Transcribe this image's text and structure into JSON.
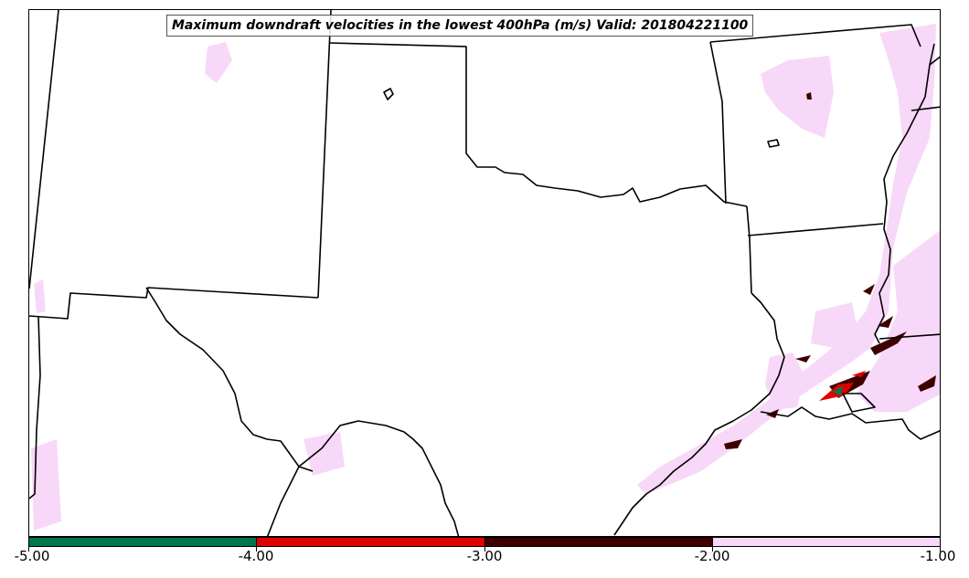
{
  "title": "Maximum downdraft velocities in the lowest 400hPa (m/s) Valid: 201804221100",
  "colorbar": {
    "ticks": [
      "-5.00",
      "-4.00",
      "-3.00",
      "-2.00",
      "-1.00"
    ],
    "bins": [
      {
        "from": -5.0,
        "to": -4.0,
        "color": "#00774a"
      },
      {
        "from": -4.0,
        "to": -3.0,
        "color": "#e00000"
      },
      {
        "from": -3.0,
        "to": -2.0,
        "color": "#3d0000"
      },
      {
        "from": -2.0,
        "to": -1.0,
        "color": "#f8d8f8"
      }
    ]
  },
  "colors": {
    "weak": "#f8d8f8",
    "moderate": "#3d0000",
    "strong": "#e00000",
    "extreme": "#00774a",
    "boundary": "#000000"
  }
}
